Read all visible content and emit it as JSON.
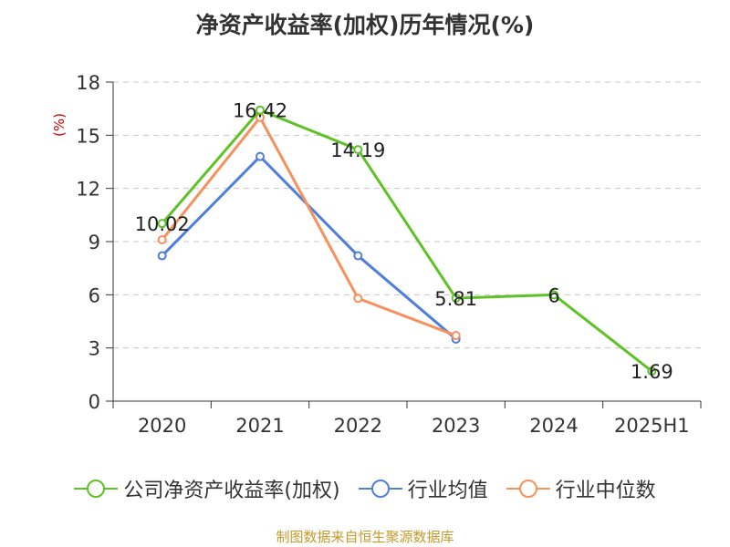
{
  "title": "净资产收益率(加权)历年情况(%)",
  "source_note": "制图数据来自恒生聚源数据库",
  "chart_data": {
    "type": "line",
    "title": "净资产收益率(加权)历年情况(%)",
    "ylabel": "(%)",
    "xlabel": "",
    "categories": [
      "2020",
      "2021",
      "2022",
      "2023",
      "2024",
      "2025H1"
    ],
    "ylim": [
      0,
      18
    ],
    "yticks": [
      0,
      3,
      6,
      9,
      12,
      15,
      18
    ],
    "grid": true,
    "legend_position": "bottom",
    "series": [
      {
        "name": "公司净资产收益率(加权)",
        "color": "#5ec226",
        "values": [
          10.02,
          16.42,
          14.19,
          5.81,
          6,
          1.69
        ],
        "labels": [
          "10.02",
          "16.42",
          "14.19",
          "5.81",
          "6",
          "1.69"
        ]
      },
      {
        "name": "行业均值",
        "color": "#4f7fd9",
        "values": [
          8.2,
          13.8,
          8.2,
          3.5,
          null,
          null
        ]
      },
      {
        "name": "行业中位数",
        "color": "#f7905a",
        "values": [
          9.1,
          16.0,
          5.8,
          3.7,
          null,
          null
        ]
      }
    ]
  }
}
